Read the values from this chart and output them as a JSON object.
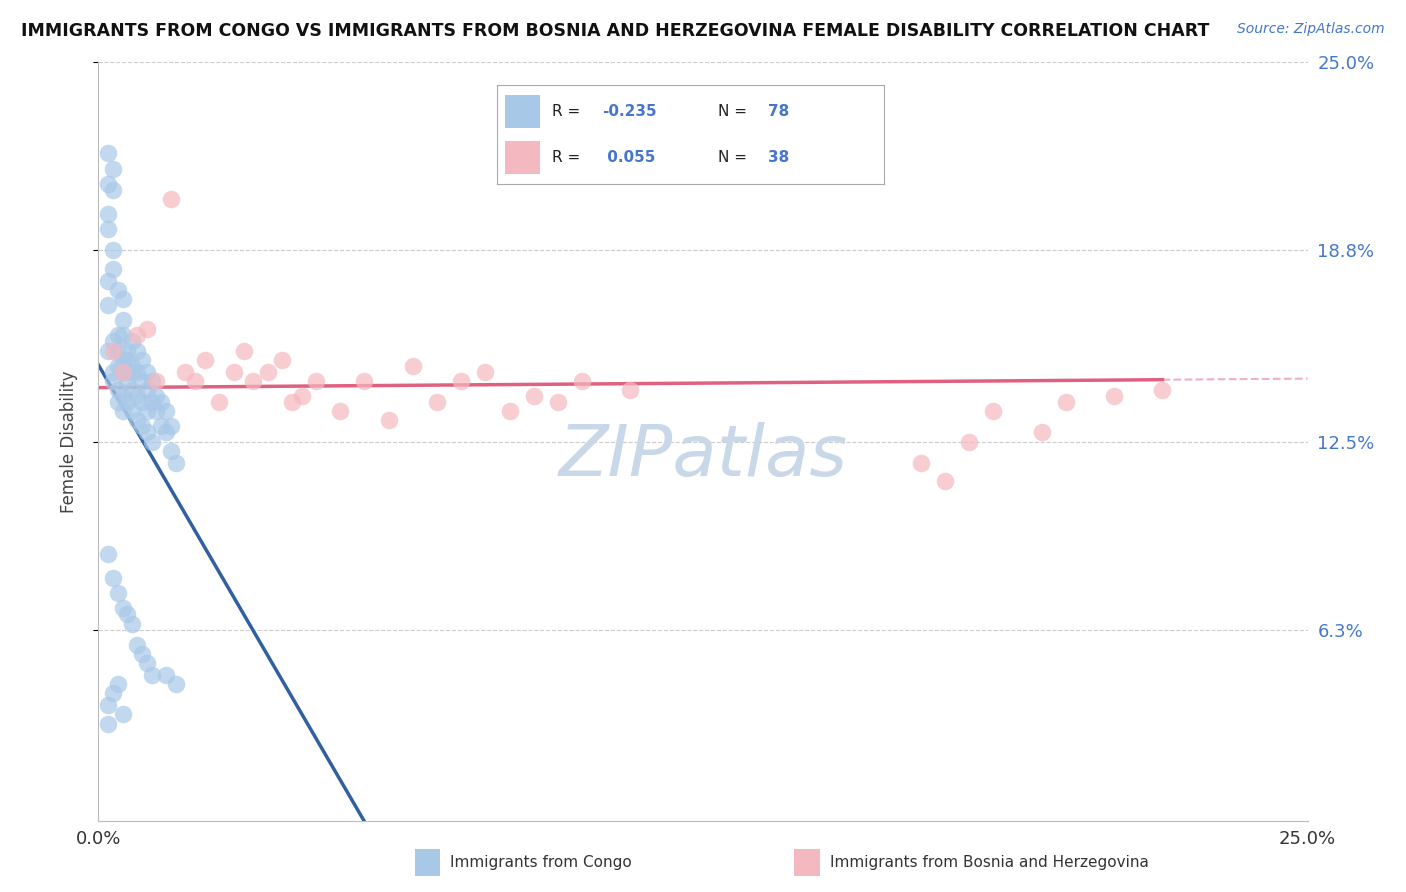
{
  "title": "IMMIGRANTS FROM CONGO VS IMMIGRANTS FROM BOSNIA AND HERZEGOVINA FEMALE DISABILITY CORRELATION CHART",
  "source": "Source: ZipAtlas.com",
  "ylabel": "Female Disability",
  "legend_label_1": "Immigrants from Congo",
  "legend_label_2": "Immigrants from Bosnia and Herzegovina",
  "R1": -0.235,
  "N1": 78,
  "R2": 0.055,
  "N2": 38,
  "color1": "#a8c8e8",
  "color2": "#f4b8c0",
  "trend_color1": "#3060a0",
  "trend_color2": "#e06080",
  "xlim": [
    0.0,
    0.25
  ],
  "ylim": [
    0.0,
    0.25
  ],
  "yticks": [
    0.063,
    0.125,
    0.188,
    0.25
  ],
  "ytick_labels": [
    "6.3%",
    "12.5%",
    "18.8%",
    "25.0%"
  ],
  "background_color": "#ffffff",
  "grid_color": "#cccccc",
  "scatter1_x": [
    0.002,
    0.002,
    0.003,
    0.003,
    0.003,
    0.004,
    0.004,
    0.004,
    0.004,
    0.004,
    0.005,
    0.005,
    0.005,
    0.005,
    0.005,
    0.005,
    0.006,
    0.006,
    0.006,
    0.006,
    0.006,
    0.007,
    0.007,
    0.007,
    0.007,
    0.007,
    0.008,
    0.008,
    0.008,
    0.008,
    0.009,
    0.009,
    0.009,
    0.009,
    0.01,
    0.01,
    0.01,
    0.01,
    0.011,
    0.011,
    0.011,
    0.012,
    0.012,
    0.013,
    0.013,
    0.014,
    0.014,
    0.015,
    0.015,
    0.016,
    0.002,
    0.003,
    0.004,
    0.005,
    0.006,
    0.007,
    0.008,
    0.009,
    0.01,
    0.011,
    0.002,
    0.003,
    0.004,
    0.005,
    0.002,
    0.003,
    0.002,
    0.002,
    0.003,
    0.004,
    0.005,
    0.002,
    0.003,
    0.002,
    0.003,
    0.002,
    0.014,
    0.016
  ],
  "scatter1_y": [
    0.155,
    0.17,
    0.148,
    0.158,
    0.145,
    0.15,
    0.142,
    0.138,
    0.155,
    0.16,
    0.148,
    0.152,
    0.14,
    0.135,
    0.16,
    0.165,
    0.145,
    0.138,
    0.152,
    0.148,
    0.155,
    0.142,
    0.15,
    0.135,
    0.148,
    0.158,
    0.14,
    0.132,
    0.148,
    0.155,
    0.138,
    0.145,
    0.13,
    0.152,
    0.135,
    0.142,
    0.128,
    0.148,
    0.138,
    0.145,
    0.125,
    0.135,
    0.14,
    0.13,
    0.138,
    0.128,
    0.135,
    0.122,
    0.13,
    0.118,
    0.088,
    0.08,
    0.075,
    0.07,
    0.068,
    0.065,
    0.058,
    0.055,
    0.052,
    0.048,
    0.038,
    0.042,
    0.045,
    0.035,
    0.178,
    0.182,
    0.195,
    0.2,
    0.188,
    0.175,
    0.172,
    0.21,
    0.215,
    0.22,
    0.208,
    0.032,
    0.048,
    0.045
  ],
  "scatter2_x": [
    0.003,
    0.005,
    0.008,
    0.01,
    0.012,
    0.015,
    0.018,
    0.02,
    0.022,
    0.025,
    0.028,
    0.03,
    0.032,
    0.035,
    0.038,
    0.04,
    0.042,
    0.045,
    0.05,
    0.055,
    0.06,
    0.065,
    0.07,
    0.075,
    0.08,
    0.085,
    0.09,
    0.095,
    0.1,
    0.11,
    0.17,
    0.175,
    0.18,
    0.185,
    0.195,
    0.2,
    0.21,
    0.22
  ],
  "scatter2_y": [
    0.155,
    0.148,
    0.16,
    0.162,
    0.145,
    0.205,
    0.148,
    0.145,
    0.152,
    0.138,
    0.148,
    0.155,
    0.145,
    0.148,
    0.152,
    0.138,
    0.14,
    0.145,
    0.135,
    0.145,
    0.132,
    0.15,
    0.138,
    0.145,
    0.148,
    0.135,
    0.14,
    0.138,
    0.145,
    0.142,
    0.118,
    0.112,
    0.125,
    0.135,
    0.128,
    0.138,
    0.14,
    0.142
  ],
  "trend1_x_start": 0.0,
  "trend1_x_solid_end": 0.055,
  "trend1_x_end": 0.25,
  "trend2_x_start": 0.0,
  "trend2_x_solid_end": 0.22,
  "trend2_x_end": 0.25,
  "watermark_text": "ZIPatlas",
  "watermark_color": "#c8d8e8",
  "watermark_fontsize": 52
}
